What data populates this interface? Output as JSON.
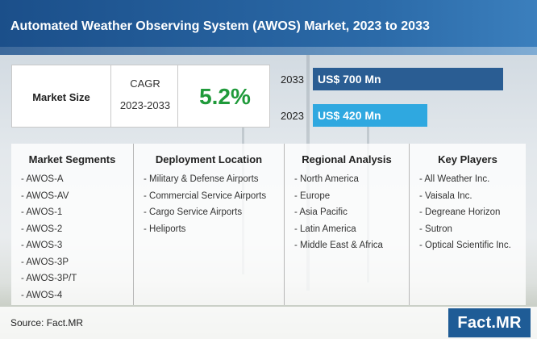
{
  "title": "Automated Weather Observing System (AWOS) Market, 2023 to 2033",
  "market_size": {
    "label": "Market Size",
    "cagr_label": "CAGR",
    "cagr_years": "2023-2033",
    "cagr_value": "5.2%"
  },
  "chart_data": {
    "type": "bar",
    "orientation": "horizontal",
    "categories": [
      "2033",
      "2023"
    ],
    "values": [
      700,
      420
    ],
    "value_labels": [
      "US$ 700 Mn",
      "US$ 420 Mn"
    ],
    "colors": [
      "#2a5d93",
      "#2fa8e0"
    ],
    "xlim": [
      0,
      700
    ]
  },
  "segments": [
    {
      "heading": "Market Segments",
      "items": [
        "- AWOS-A",
        "- AWOS-AV",
        "- AWOS-1",
        "- AWOS-2",
        "- AWOS-3",
        "- AWOS-3P",
        "- AWOS-3P/T",
        "- AWOS-4"
      ]
    },
    {
      "heading": "Deployment Location",
      "items": [
        "- Military & Defense Airports",
        "- Commercial Service Airports",
        "- Cargo Service Airports",
        "- Heliports"
      ]
    },
    {
      "heading": "Regional Analysis",
      "items": [
        "- North America",
        "- Europe",
        "- Asia Pacific",
        "- Latin America",
        "- Middle East & Africa"
      ]
    },
    {
      "heading": "Key Players",
      "items": [
        "- All Weather Inc.",
        "- Vaisala Inc.",
        "- Degreane Horizon",
        "- Sutron",
        "- Optical Scientific Inc."
      ]
    }
  ],
  "footer": {
    "source": "Source: Fact.MR",
    "logo": "Fact.MR"
  },
  "colors": {
    "banner": "#1b4f8a",
    "cagr_value": "#1f9a3a",
    "bar_2033": "#2a5d93",
    "bar_2023": "#2fa8e0"
  }
}
